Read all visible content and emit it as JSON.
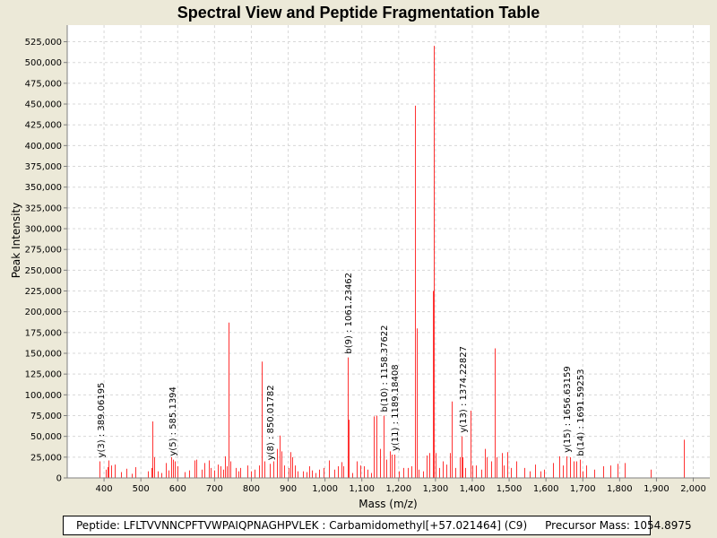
{
  "chart_data": {
    "type": "bar",
    "title": "Spectral View and Peptide Fragmentation Table",
    "xlabel": "Mass (m/z)",
    "ylabel": "Peak Intensity",
    "xlim": [
      300,
      2045
    ],
    "ylim": [
      0,
      545000
    ],
    "xticks": [
      400,
      500,
      600,
      700,
      800,
      900,
      1000,
      1100,
      1200,
      1300,
      1400,
      1500,
      1600,
      1700,
      1800,
      1900,
      2000
    ],
    "xtick_labels": [
      "400",
      "500",
      "600",
      "700",
      "800",
      "900",
      "1,000",
      "1,100",
      "1,200",
      "1,300",
      "1,400",
      "1,500",
      "1,600",
      "1,700",
      "1,800",
      "1,900",
      "2,000"
    ],
    "yticks": [
      0,
      25000,
      50000,
      75000,
      100000,
      125000,
      150000,
      175000,
      200000,
      225000,
      250000,
      275000,
      300000,
      325000,
      350000,
      375000,
      400000,
      425000,
      450000,
      475000,
      500000,
      525000
    ],
    "ytick_labels": [
      "0",
      "25,000",
      "50,000",
      "75,000",
      "100,000",
      "125,000",
      "150,000",
      "175,000",
      "200,000",
      "225,000",
      "250,000",
      "275,000",
      "300,000",
      "325,000",
      "350,000",
      "375,000",
      "400,000",
      "425,000",
      "450,000",
      "475,000",
      "500,000",
      "525,000"
    ],
    "grid": true,
    "peak_color": "#ff3333",
    "peaks": [
      {
        "mz": 388,
        "i": 20000
      },
      {
        "mz": 405,
        "i": 10000
      },
      {
        "mz": 410,
        "i": 13000
      },
      {
        "mz": 413,
        "i": 21000
      },
      {
        "mz": 420,
        "i": 15000
      },
      {
        "mz": 430,
        "i": 16000
      },
      {
        "mz": 445,
        "i": 7000
      },
      {
        "mz": 460,
        "i": 11000
      },
      {
        "mz": 475,
        "i": 5000
      },
      {
        "mz": 485,
        "i": 13000
      },
      {
        "mz": 520,
        "i": 8000
      },
      {
        "mz": 528,
        "i": 12000
      },
      {
        "mz": 530,
        "i": 68000
      },
      {
        "mz": 537,
        "i": 25000
      },
      {
        "mz": 545,
        "i": 8000
      },
      {
        "mz": 555,
        "i": 6000
      },
      {
        "mz": 568,
        "i": 18000
      },
      {
        "mz": 575,
        "i": 9000
      },
      {
        "mz": 583,
        "i": 25000
      },
      {
        "mz": 586,
        "i": 22000
      },
      {
        "mz": 592,
        "i": 20000
      },
      {
        "mz": 600,
        "i": 14000
      },
      {
        "mz": 620,
        "i": 7000
      },
      {
        "mz": 632,
        "i": 9000
      },
      {
        "mz": 645,
        "i": 21000
      },
      {
        "mz": 650,
        "i": 22000
      },
      {
        "mz": 665,
        "i": 10000
      },
      {
        "mz": 672,
        "i": 18000
      },
      {
        "mz": 685,
        "i": 21000
      },
      {
        "mz": 690,
        "i": 12000
      },
      {
        "mz": 700,
        "i": 9000
      },
      {
        "mz": 710,
        "i": 16000
      },
      {
        "mz": 717,
        "i": 14000
      },
      {
        "mz": 723,
        "i": 10000
      },
      {
        "mz": 728,
        "i": 26000
      },
      {
        "mz": 732,
        "i": 14000
      },
      {
        "mz": 737,
        "i": 187000
      },
      {
        "mz": 742,
        "i": 20000
      },
      {
        "mz": 758,
        "i": 12000
      },
      {
        "mz": 765,
        "i": 8000
      },
      {
        "mz": 770,
        "i": 12000
      },
      {
        "mz": 788,
        "i": 15000
      },
      {
        "mz": 800,
        "i": 8000
      },
      {
        "mz": 808,
        "i": 10000
      },
      {
        "mz": 820,
        "i": 15000
      },
      {
        "mz": 828,
        "i": 140000
      },
      {
        "mz": 836,
        "i": 20000
      },
      {
        "mz": 850,
        "i": 17000
      },
      {
        "mz": 860,
        "i": 20000
      },
      {
        "mz": 870,
        "i": 35000
      },
      {
        "mz": 878,
        "i": 51000
      },
      {
        "mz": 882,
        "i": 32000
      },
      {
        "mz": 888,
        "i": 15000
      },
      {
        "mz": 900,
        "i": 12000
      },
      {
        "mz": 905,
        "i": 31000
      },
      {
        "mz": 912,
        "i": 25000
      },
      {
        "mz": 918,
        "i": 15000
      },
      {
        "mz": 925,
        "i": 8000
      },
      {
        "mz": 940,
        "i": 8000
      },
      {
        "mz": 950,
        "i": 7000
      },
      {
        "mz": 958,
        "i": 14000
      },
      {
        "mz": 965,
        "i": 9000
      },
      {
        "mz": 975,
        "i": 6000
      },
      {
        "mz": 985,
        "i": 10000
      },
      {
        "mz": 996,
        "i": 12000
      },
      {
        "mz": 1010,
        "i": 21000
      },
      {
        "mz": 1025,
        "i": 10000
      },
      {
        "mz": 1035,
        "i": 14000
      },
      {
        "mz": 1045,
        "i": 19000
      },
      {
        "mz": 1050,
        "i": 14000
      },
      {
        "mz": 1061,
        "i": 145000
      },
      {
        "mz": 1064,
        "i": 70000
      },
      {
        "mz": 1075,
        "i": 6000
      },
      {
        "mz": 1085,
        "i": 20000
      },
      {
        "mz": 1095,
        "i": 15000
      },
      {
        "mz": 1105,
        "i": 14000
      },
      {
        "mz": 1115,
        "i": 10000
      },
      {
        "mz": 1125,
        "i": 6000
      },
      {
        "mz": 1133,
        "i": 74000
      },
      {
        "mz": 1140,
        "i": 75000
      },
      {
        "mz": 1150,
        "i": 35000
      },
      {
        "mz": 1158,
        "i": 75000
      },
      {
        "mz": 1167,
        "i": 22000
      },
      {
        "mz": 1175,
        "i": 32000
      },
      {
        "mz": 1180,
        "i": 28000
      },
      {
        "mz": 1189,
        "i": 28000
      },
      {
        "mz": 1200,
        "i": 8000
      },
      {
        "mz": 1212,
        "i": 12000
      },
      {
        "mz": 1225,
        "i": 12000
      },
      {
        "mz": 1235,
        "i": 14000
      },
      {
        "mz": 1245,
        "i": 448000
      },
      {
        "mz": 1248,
        "i": 180000
      },
      {
        "mz": 1255,
        "i": 10000
      },
      {
        "mz": 1265,
        "i": 8000
      },
      {
        "mz": 1275,
        "i": 27000
      },
      {
        "mz": 1283,
        "i": 30000
      },
      {
        "mz": 1292,
        "i": 225000
      },
      {
        "mz": 1295,
        "i": 520000
      },
      {
        "mz": 1300,
        "i": 30000
      },
      {
        "mz": 1310,
        "i": 12000
      },
      {
        "mz": 1320,
        "i": 20000
      },
      {
        "mz": 1330,
        "i": 16000
      },
      {
        "mz": 1340,
        "i": 30000
      },
      {
        "mz": 1345,
        "i": 92000
      },
      {
        "mz": 1355,
        "i": 12000
      },
      {
        "mz": 1365,
        "i": 25000
      },
      {
        "mz": 1370,
        "i": 50000
      },
      {
        "mz": 1374,
        "i": 25000
      },
      {
        "mz": 1380,
        "i": 12000
      },
      {
        "mz": 1395,
        "i": 81000
      },
      {
        "mz": 1400,
        "i": 15000
      },
      {
        "mz": 1410,
        "i": 15000
      },
      {
        "mz": 1425,
        "i": 10000
      },
      {
        "mz": 1435,
        "i": 35000
      },
      {
        "mz": 1440,
        "i": 25000
      },
      {
        "mz": 1450,
        "i": 20000
      },
      {
        "mz": 1462,
        "i": 156000
      },
      {
        "mz": 1465,
        "i": 25000
      },
      {
        "mz": 1480,
        "i": 30000
      },
      {
        "mz": 1485,
        "i": 15000
      },
      {
        "mz": 1495,
        "i": 31000
      },
      {
        "mz": 1505,
        "i": 12000
      },
      {
        "mz": 1520,
        "i": 20000
      },
      {
        "mz": 1540,
        "i": 12000
      },
      {
        "mz": 1555,
        "i": 8000
      },
      {
        "mz": 1570,
        "i": 16000
      },
      {
        "mz": 1585,
        "i": 8000
      },
      {
        "mz": 1595,
        "i": 10000
      },
      {
        "mz": 1620,
        "i": 18000
      },
      {
        "mz": 1635,
        "i": 26000
      },
      {
        "mz": 1645,
        "i": 15000
      },
      {
        "mz": 1655,
        "i": 26000
      },
      {
        "mz": 1665,
        "i": 25000
      },
      {
        "mz": 1675,
        "i": 20000
      },
      {
        "mz": 1682,
        "i": 20000
      },
      {
        "mz": 1691,
        "i": 22000
      },
      {
        "mz": 1700,
        "i": 8000
      },
      {
        "mz": 1710,
        "i": 15000
      },
      {
        "mz": 1730,
        "i": 10000
      },
      {
        "mz": 1755,
        "i": 14000
      },
      {
        "mz": 1775,
        "i": 15000
      },
      {
        "mz": 1795,
        "i": 17000
      },
      {
        "mz": 1815,
        "i": 18000
      },
      {
        "mz": 1885,
        "i": 10000
      },
      {
        "mz": 1975,
        "i": 46000
      }
    ],
    "annotations": [
      {
        "label": "y(3) : 389.06195",
        "mz": 389.06195,
        "i": 20000
      },
      {
        "label": "y(5) : 585.1394",
        "mz": 585.1394,
        "i": 22000
      },
      {
        "label": "y(8) : 850.01782",
        "mz": 850.01782,
        "i": 17000
      },
      {
        "label": "b(9) : 1061.23462",
        "mz": 1061.23462,
        "i": 145000
      },
      {
        "label": "b(10) : 1158.37622",
        "mz": 1158.37622,
        "i": 75000
      },
      {
        "label": "y(11) : 1189.18408",
        "mz": 1189.18408,
        "i": 28000
      },
      {
        "label": "y(13) : 1374.22827",
        "mz": 1374.22827,
        "i": 50000
      },
      {
        "label": "y(15) : 1656.63159",
        "mz": 1656.63159,
        "i": 26000
      },
      {
        "label": "b(14) : 1691.59253",
        "mz": 1691.59253,
        "i": 22000
      }
    ]
  },
  "footer": {
    "peptide_text": "Peptide: LFLTVVNNCPFTVWPAIQPNAGHPVLEK : Carbamidomethyl[+57.021464] (C9)",
    "precursor_text": "Precursor Mass: 1054.8975"
  }
}
